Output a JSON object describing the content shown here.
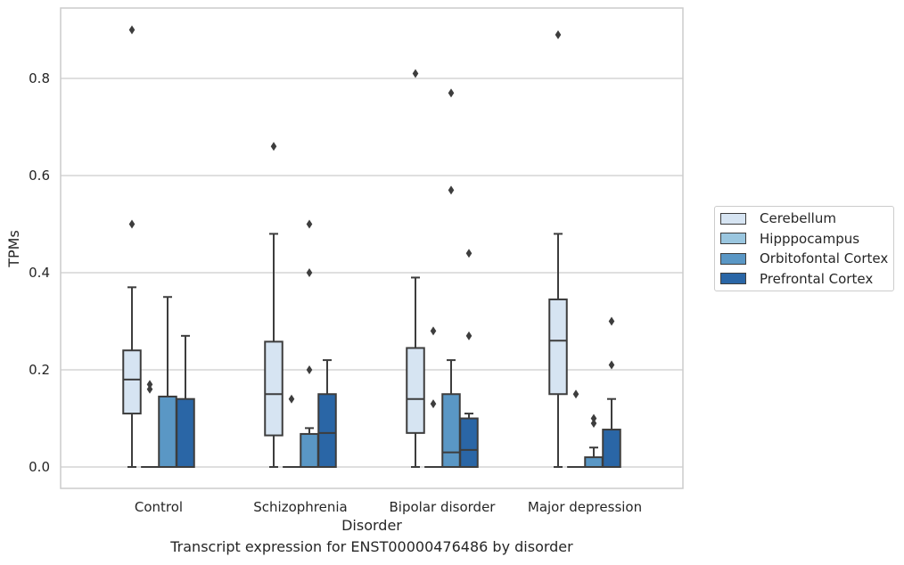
{
  "chart_data": {
    "type": "box",
    "caption": "Transcript expression for ENST00000476486 by disorder",
    "xlabel": "Disorder",
    "ylabel": "TPMs",
    "ylim": [
      -0.045,
      0.945
    ],
    "yticks": [
      "0.0",
      "0.2",
      "0.4",
      "0.6",
      "0.8"
    ],
    "ytick_values": [
      0.0,
      0.2,
      0.4,
      0.6,
      0.8
    ],
    "grid": "horizontal",
    "legend_position": "right",
    "categories": [
      "Control",
      "Schizophrenia",
      "Bipolar disorder",
      "Major depression"
    ],
    "series": [
      {
        "name": "Cerebellum",
        "color": "#d6e4f2",
        "boxes": [
          {
            "whisker_low": 0.0,
            "q1": 0.11,
            "median": 0.18,
            "q3": 0.24,
            "whisker_high": 0.37,
            "outliers": [
              0.5,
              0.9
            ]
          },
          {
            "whisker_low": 0.0,
            "q1": 0.065,
            "median": 0.15,
            "q3": 0.258,
            "whisker_high": 0.48,
            "outliers": [
              0.66
            ]
          },
          {
            "whisker_low": 0.0,
            "q1": 0.07,
            "median": 0.14,
            "q3": 0.245,
            "whisker_high": 0.39,
            "outliers": [
              0.81
            ]
          },
          {
            "whisker_low": 0.0,
            "q1": 0.15,
            "median": 0.26,
            "q3": 0.345,
            "whisker_high": 0.48,
            "outliers": [
              0.89
            ]
          }
        ]
      },
      {
        "name": "Hipppocampus",
        "color": "#9ac6df",
        "boxes": [
          {
            "whisker_low": 0.0,
            "q1": 0.0,
            "median": 0.0,
            "q3": 0.0,
            "whisker_high": 0.0,
            "outliers": [
              0.16,
              0.17
            ]
          },
          {
            "whisker_low": 0.0,
            "q1": 0.0,
            "median": 0.0,
            "q3": 0.0,
            "whisker_high": 0.0,
            "outliers": [
              0.14
            ]
          },
          {
            "whisker_low": 0.0,
            "q1": 0.0,
            "median": 0.0,
            "q3": 0.0,
            "whisker_high": 0.0,
            "outliers": [
              0.13,
              0.28
            ]
          },
          {
            "whisker_low": 0.0,
            "q1": 0.0,
            "median": 0.0,
            "q3": 0.0,
            "whisker_high": 0.0,
            "outliers": [
              0.15
            ]
          }
        ]
      },
      {
        "name": "Orbitofontal Cortex",
        "color": "#5a97c5",
        "boxes": [
          {
            "whisker_low": 0.0,
            "q1": 0.0,
            "median": 0.0,
            "q3": 0.145,
            "whisker_high": 0.35,
            "outliers": []
          },
          {
            "whisker_low": 0.0,
            "q1": 0.0,
            "median": 0.0,
            "q3": 0.068,
            "whisker_high": 0.08,
            "outliers": [
              0.2,
              0.4,
              0.5
            ]
          },
          {
            "whisker_low": 0.0,
            "q1": 0.0,
            "median": 0.03,
            "q3": 0.15,
            "whisker_high": 0.22,
            "outliers": [
              0.57,
              0.77
            ]
          },
          {
            "whisker_low": 0.0,
            "q1": 0.0,
            "median": 0.0,
            "q3": 0.02,
            "whisker_high": 0.04,
            "outliers": [
              0.09,
              0.1
            ]
          }
        ]
      },
      {
        "name": "Prefrontal Cortex",
        "color": "#2a66a6",
        "boxes": [
          {
            "whisker_low": 0.0,
            "q1": 0.0,
            "median": 0.0,
            "q3": 0.14,
            "whisker_high": 0.27,
            "outliers": []
          },
          {
            "whisker_low": 0.0,
            "q1": 0.0,
            "median": 0.07,
            "q3": 0.15,
            "whisker_high": 0.22,
            "outliers": []
          },
          {
            "whisker_low": 0.0,
            "q1": 0.0,
            "median": 0.035,
            "q3": 0.1,
            "whisker_high": 0.11,
            "outliers": [
              0.27,
              0.44
            ]
          },
          {
            "whisker_low": 0.0,
            "q1": 0.0,
            "median": 0.0,
            "q3": 0.077,
            "whisker_high": 0.14,
            "outliers": [
              0.21,
              0.3
            ]
          }
        ]
      }
    ]
  }
}
